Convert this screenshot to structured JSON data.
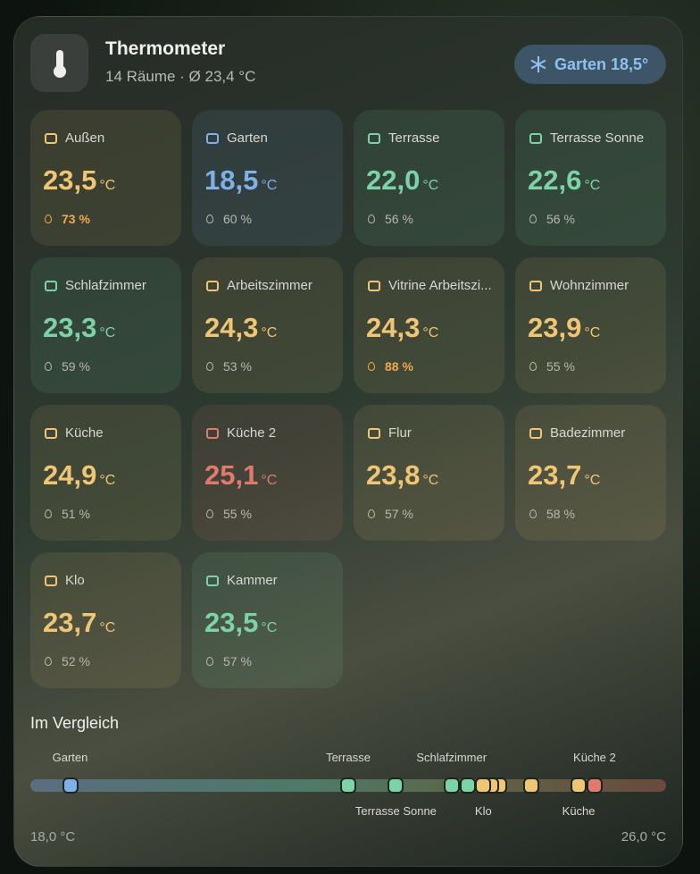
{
  "header": {
    "title": "Thermometer",
    "subtitle": "14 Räume · Ø 23,4 °C",
    "badge": "Garten 18,5°"
  },
  "unit": "°C",
  "rooms": [
    {
      "name": "Außen",
      "temp": "23,5",
      "humidity": "73 %",
      "color": "#f0c674",
      "humidity_color": "#f0a94e"
    },
    {
      "name": "Garten",
      "temp": "18,5",
      "humidity": "60 %",
      "color": "#7fb0e8",
      "humidity_color": "#b8b8b0"
    },
    {
      "name": "Terrasse",
      "temp": "22,0",
      "humidity": "56 %",
      "color": "#7dd3a8",
      "humidity_color": "#b8b8b0"
    },
    {
      "name": "Terrasse Sonne",
      "temp": "22,6",
      "humidity": "56 %",
      "color": "#7dd3a8",
      "humidity_color": "#b8b8b0"
    },
    {
      "name": "Schlafzimmer",
      "temp": "23,3",
      "humidity": "59 %",
      "color": "#7dd3a8",
      "humidity_color": "#b8b8b0"
    },
    {
      "name": "Arbeitszimmer",
      "temp": "24,3",
      "humidity": "53 %",
      "color": "#f0c674",
      "humidity_color": "#b8b8b0"
    },
    {
      "name": "Vitrine Arbeitszi...",
      "temp": "24,3",
      "humidity": "88 %",
      "color": "#f0c674",
      "humidity_color": "#f0a94e"
    },
    {
      "name": "Wohnzimmer",
      "temp": "23,9",
      "humidity": "55 %",
      "color": "#f0c674",
      "humidity_color": "#b8b8b0"
    },
    {
      "name": "Küche",
      "temp": "24,9",
      "humidity": "51 %",
      "color": "#f0c674",
      "humidity_color": "#b8b8b0"
    },
    {
      "name": "Küche 2",
      "temp": "25,1",
      "humidity": "55 %",
      "color": "#e07a6e",
      "humidity_color": "#b8b8b0"
    },
    {
      "name": "Flur",
      "temp": "23,8",
      "humidity": "57 %",
      "color": "#f0c674",
      "humidity_color": "#b8b8b0"
    },
    {
      "name": "Badezimmer",
      "temp": "23,7",
      "humidity": "58 %",
      "color": "#f0c674",
      "humidity_color": "#b8b8b0"
    },
    {
      "name": "Klo",
      "temp": "23,7",
      "humidity": "52 %",
      "color": "#f0c674",
      "humidity_color": "#b8b8b0"
    },
    {
      "name": "Kammer",
      "temp": "23,5",
      "humidity": "57 %",
      "color": "#7dd3a8",
      "humidity_color": "#b8b8b0"
    }
  ],
  "comparison": {
    "title": "Im Vergleich",
    "labels_above": [
      "Garten",
      "Terrasse",
      "Schlafzimmer",
      "Küche 2"
    ],
    "labels_below": [
      "Terrasse Sonne",
      "Klo",
      "Küche"
    ],
    "min_label": "18,0 °C",
    "max_label": "26,0 °C"
  }
}
